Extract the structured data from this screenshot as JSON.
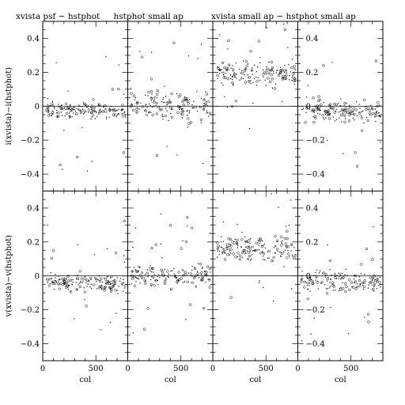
{
  "chart_data": {
    "type": "scatter",
    "grid": false,
    "columns": [
      {
        "title": "xvista psf − hstphot"
      },
      {
        "title": "hstphot small ap"
      },
      {
        "title": "xvista small ap − hstphot small ap"
      },
      {
        "title": ""
      }
    ],
    "rows": [
      {
        "ylabel": "i(xvista)−i(hstphot)"
      },
      {
        "ylabel": "v(xvista)−v(hstphot)"
      }
    ],
    "xlabel": "col",
    "xlim": [
      0,
      800
    ],
    "ylim": [
      -0.5,
      0.5
    ],
    "x_ticklabels": [
      {
        "value": 0,
        "text": "0"
      },
      {
        "value": 500,
        "text": "500"
      }
    ],
    "y_ticklabels": [
      {
        "value": 0.4,
        "text": "0.4"
      },
      {
        "value": 0.2,
        "text": "0.2"
      },
      {
        "value": 0,
        "text": "0"
      },
      {
        "value": -0.2,
        "text": "−0.2"
      },
      {
        "value": -0.4,
        "text": "−0.4"
      }
    ],
    "panels": [
      {
        "row": 0,
        "col": 0,
        "offset": -0.01,
        "spread": 0.025,
        "tilt": -0.03,
        "n": 180,
        "seed": 11
      },
      {
        "row": 0,
        "col": 1,
        "offset": 0.01,
        "spread": 0.04,
        "tilt": -0.01,
        "n": 170,
        "seed": 23
      },
      {
        "row": 0,
        "col": 2,
        "offset": 0.19,
        "spread": 0.035,
        "tilt": 0.0,
        "n": 180,
        "seed": 37
      },
      {
        "row": 0,
        "col": 3,
        "offset": -0.02,
        "spread": 0.03,
        "tilt": -0.02,
        "n": 170,
        "seed": 41
      },
      {
        "row": 1,
        "col": 0,
        "offset": -0.03,
        "spread": 0.025,
        "tilt": -0.02,
        "n": 180,
        "seed": 53
      },
      {
        "row": 1,
        "col": 1,
        "offset": 0.0,
        "spread": 0.03,
        "tilt": 0.0,
        "n": 170,
        "seed": 67
      },
      {
        "row": 1,
        "col": 2,
        "offset": 0.16,
        "spread": 0.035,
        "tilt": 0.0,
        "n": 180,
        "seed": 79
      },
      {
        "row": 1,
        "col": 3,
        "offset": -0.02,
        "spread": 0.03,
        "tilt": -0.02,
        "n": 170,
        "seed": 83
      }
    ]
  }
}
